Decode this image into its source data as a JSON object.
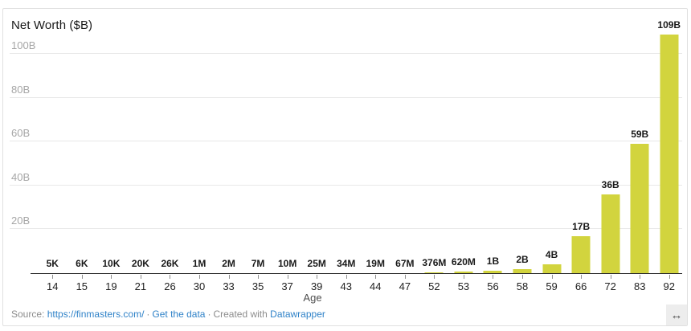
{
  "chart_data": {
    "type": "bar",
    "title": "Net Worth ($B)",
    "xlabel": "Age",
    "ylabel": "",
    "ylim": [
      0,
      110
    ],
    "grid": true,
    "legend": "none",
    "bar_color": "#d2d43e",
    "yticks": [
      {
        "value": 20,
        "label": "20B"
      },
      {
        "value": 40,
        "label": "40B"
      },
      {
        "value": 60,
        "label": "60B"
      },
      {
        "value": 80,
        "label": "80B"
      },
      {
        "value": 100,
        "label": "100B"
      }
    ],
    "categories": [
      14,
      15,
      19,
      21,
      26,
      30,
      33,
      35,
      37,
      39,
      43,
      44,
      47,
      52,
      53,
      56,
      58,
      59,
      66,
      72,
      83,
      92
    ],
    "values": [
      5e-06,
      6e-06,
      1e-05,
      2e-05,
      2.6e-05,
      0.001,
      0.002,
      0.007,
      0.01,
      0.025,
      0.034,
      0.019,
      0.067,
      0.376,
      0.62,
      1,
      2,
      4,
      17,
      36,
      59,
      109
    ],
    "bar_labels": [
      "5K",
      "6K",
      "10K",
      "20K",
      "26K",
      "1M",
      "2M",
      "7M",
      "10M",
      "25M",
      "34M",
      "19M",
      "67M",
      "376M",
      "620M",
      "1B",
      "2B",
      "4B",
      "17B",
      "36B",
      "59B",
      "109B"
    ]
  },
  "footer": {
    "source_label": "Source:",
    "source_link": "https://finmasters.com/",
    "separator": "·",
    "get_data_link": "Get the data",
    "created_with": "Created with",
    "datawrapper_link": "Datawrapper"
  },
  "icons": {
    "resize": "↔"
  }
}
